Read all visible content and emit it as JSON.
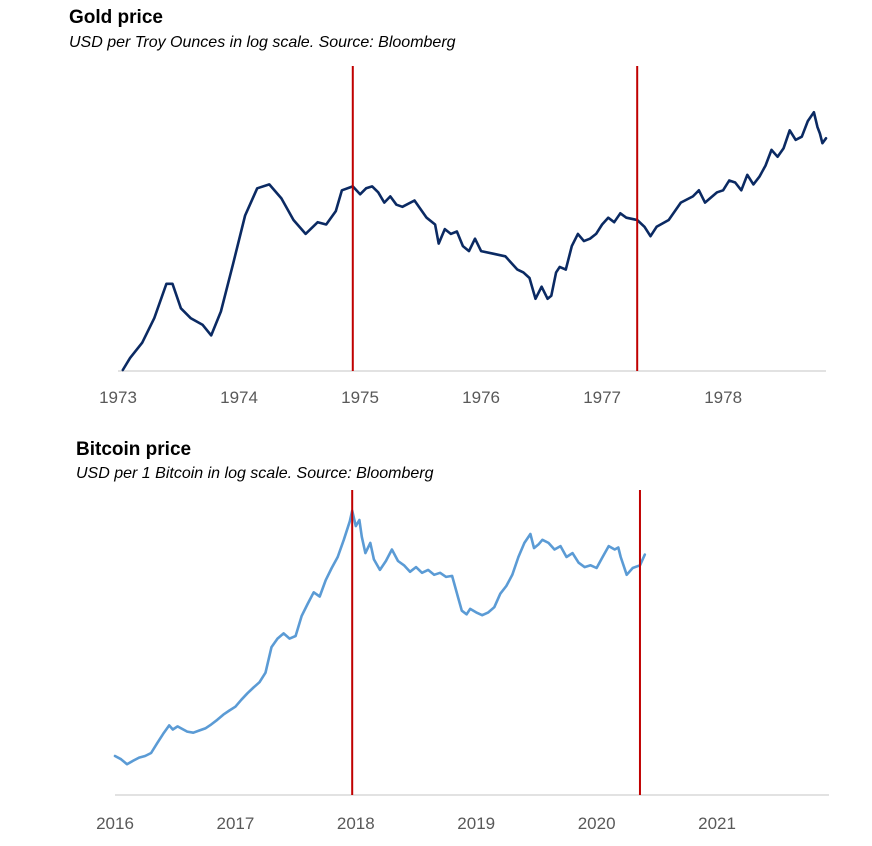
{
  "chart_data": [
    {
      "type": "line",
      "title": "Gold price",
      "subtitle": "USD per Troy Ounces in log scale. Source: Bloomberg",
      "xlabel": "",
      "ylabel": "",
      "y_scale": "log",
      "y_axis_labels": "none",
      "grid": false,
      "color": "#0b2a63",
      "marker_color": "#c00000",
      "x_ticks": [
        "1973",
        "1974",
        "1975",
        "1976",
        "1977",
        "1978"
      ],
      "xlim": [
        1973,
        1978.85
      ],
      "ylim": [
        60,
        200
      ],
      "markers_x": [
        1974.94,
        1977.29
      ],
      "series": [
        {
          "x": [
            1973.04,
            1973.1,
            1973.2,
            1973.3,
            1973.4,
            1973.45,
            1973.52,
            1973.6,
            1973.7,
            1973.77,
            1973.85,
            1973.95,
            1974.05,
            1974.15,
            1974.25,
            1974.35,
            1974.45,
            1974.55,
            1974.65,
            1974.72,
            1974.8,
            1974.85,
            1974.94,
            1975.0,
            1975.05,
            1975.1,
            1975.15,
            1975.2,
            1975.25,
            1975.3,
            1975.35,
            1975.45,
            1975.55,
            1975.62,
            1975.65,
            1975.7,
            1975.75,
            1975.8,
            1975.85,
            1975.9,
            1975.95,
            1976.0,
            1976.1,
            1976.2,
            1976.3,
            1976.35,
            1976.4,
            1976.45,
            1976.5,
            1976.55,
            1976.58,
            1976.62,
            1976.65,
            1976.7,
            1976.75,
            1976.8,
            1976.85,
            1976.9,
            1976.95,
            1977.0,
            1977.05,
            1977.1,
            1977.15,
            1977.2,
            1977.29,
            1977.35,
            1977.4,
            1977.45,
            1977.55,
            1977.65,
            1977.75,
            1977.8,
            1977.85,
            1977.95,
            1978.0,
            1978.05,
            1978.1,
            1978.15,
            1978.2,
            1978.25,
            1978.3,
            1978.35,
            1978.4,
            1978.45,
            1978.5,
            1978.55,
            1978.6,
            1978.65,
            1978.7,
            1978.75,
            1978.78,
            1978.8,
            1978.82,
            1978.85
          ],
          "y": [
            60,
            63,
            67,
            74,
            85,
            85,
            77,
            74,
            72,
            69,
            76,
            92,
            112,
            125,
            127,
            120,
            110,
            104,
            109,
            108,
            114,
            124,
            126,
            122,
            125,
            126,
            123,
            118,
            121,
            117,
            116,
            119,
            111,
            108,
            100,
            106,
            104,
            105,
            99,
            97,
            102,
            97,
            96,
            95,
            90,
            89,
            87,
            80,
            84,
            80,
            81,
            89,
            91,
            90,
            99,
            104,
            101,
            102,
            104,
            108,
            111,
            109,
            113,
            111,
            110,
            107,
            103,
            107,
            110,
            118,
            121,
            124,
            118,
            123,
            124,
            129,
            128,
            124,
            132,
            127,
            131,
            137,
            146,
            142,
            147,
            158,
            152,
            154,
            164,
            170,
            160,
            156,
            150,
            153
          ]
        }
      ]
    },
    {
      "type": "line",
      "title": "Bitcoin price",
      "subtitle": "USD per 1 Bitcoin in log scale. Source: Bloomberg",
      "xlabel": "",
      "ylabel": "",
      "y_scale": "log",
      "y_axis_labels": "none",
      "grid": false,
      "color": "#5b9bd5",
      "marker_color": "#c00000",
      "x_ticks": [
        "2016",
        "2017",
        "2018",
        "2019",
        "2020",
        "2021"
      ],
      "xlim": [
        2016,
        2021.93
      ],
      "ylim": [
        300,
        25000
      ],
      "markers_x": [
        2017.97,
        2020.36
      ],
      "series": [
        {
          "x": [
            2016.0,
            2016.05,
            2016.1,
            2016.15,
            2016.2,
            2016.25,
            2016.3,
            2016.35,
            2016.4,
            2016.45,
            2016.48,
            2016.52,
            2016.55,
            2016.6,
            2016.65,
            2016.7,
            2016.75,
            2016.8,
            2016.85,
            2016.9,
            2016.95,
            2017.0,
            2017.05,
            2017.1,
            2017.15,
            2017.2,
            2017.25,
            2017.3,
            2017.35,
            2017.4,
            2017.45,
            2017.5,
            2017.55,
            2017.6,
            2017.65,
            2017.7,
            2017.75,
            2017.8,
            2017.85,
            2017.9,
            2017.95,
            2017.97,
            2018.0,
            2018.03,
            2018.05,
            2018.08,
            2018.12,
            2018.15,
            2018.2,
            2018.25,
            2018.3,
            2018.35,
            2018.4,
            2018.45,
            2018.5,
            2018.55,
            2018.6,
            2018.65,
            2018.7,
            2018.75,
            2018.8,
            2018.85,
            2018.88,
            2018.92,
            2018.95,
            2019.0,
            2019.05,
            2019.1,
            2019.15,
            2019.2,
            2019.25,
            2019.3,
            2019.35,
            2019.4,
            2019.45,
            2019.48,
            2019.52,
            2019.55,
            2019.6,
            2019.65,
            2019.7,
            2019.75,
            2019.8,
            2019.85,
            2019.9,
            2019.95,
            2020.0,
            2020.05,
            2020.1,
            2020.15,
            2020.18,
            2020.2,
            2020.25,
            2020.3,
            2020.36,
            2020.4
          ],
          "y": [
            430,
            410,
            380,
            400,
            420,
            430,
            450,
            520,
            600,
            680,
            640,
            670,
            650,
            620,
            610,
            630,
            650,
            690,
            740,
            800,
            850,
            900,
            1000,
            1100,
            1200,
            1300,
            1500,
            2200,
            2500,
            2700,
            2500,
            2600,
            3500,
            4200,
            5000,
            4700,
            6000,
            7200,
            8500,
            11000,
            14500,
            17000,
            13500,
            14800,
            11500,
            9000,
            10500,
            8200,
            7000,
            8000,
            9500,
            8000,
            7500,
            6800,
            7300,
            6700,
            7000,
            6500,
            6700,
            6300,
            6400,
            4600,
            3800,
            3600,
            3900,
            3700,
            3550,
            3700,
            4000,
            4900,
            5500,
            6500,
            8500,
            10500,
            12000,
            9700,
            10300,
            11000,
            10500,
            9500,
            10000,
            8500,
            9000,
            7800,
            7300,
            7500,
            7200,
            8500,
            10000,
            9500,
            9800,
            8500,
            6500,
            7200,
            7500,
            8800
          ]
        }
      ]
    }
  ]
}
